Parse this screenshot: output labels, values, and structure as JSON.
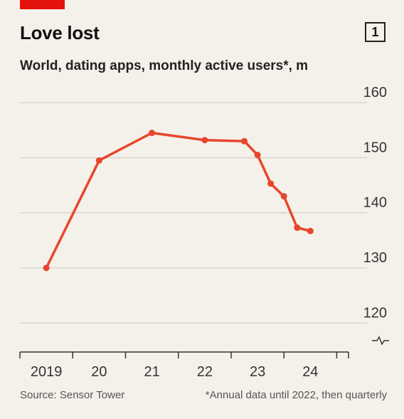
{
  "header": {
    "title": "Love lost",
    "badge": "1",
    "subtitle": "World, dating apps, monthly active users*, m"
  },
  "footer": {
    "source": "Source: Sensor Tower",
    "note": "*Annual data until 2022, then quarterly"
  },
  "colors": {
    "line": "#e8452c",
    "accent_tag": "#e3120b",
    "background": "#f4f1ea",
    "grid": "#c9c6bf"
  },
  "chart_data": {
    "type": "line",
    "title": "Love lost",
    "subtitle": "World, dating apps, monthly active users*, m",
    "ylim": [
      115,
      160
    ],
    "y_axis_break": true,
    "yticks": [
      120,
      130,
      140,
      150,
      160
    ],
    "x_tick_labels": [
      "2019",
      "20",
      "21",
      "22",
      "23",
      "24"
    ],
    "x_tick_positions": [
      2019,
      2020,
      2021,
      2022,
      2023,
      2024
    ],
    "xlim": [
      2018.5,
      2024.75
    ],
    "grid": true,
    "y_axis_side": "right",
    "series": [
      {
        "x": [
          2019,
          2020,
          2021,
          2022,
          2022.75,
          2023.0,
          2023.25,
          2023.5,
          2023.75,
          2024.0
        ],
        "values": [
          130,
          149.5,
          154.5,
          153.2,
          153.0,
          150.5,
          145.3,
          143.0,
          137.3,
          136.7
        ]
      }
    ]
  }
}
